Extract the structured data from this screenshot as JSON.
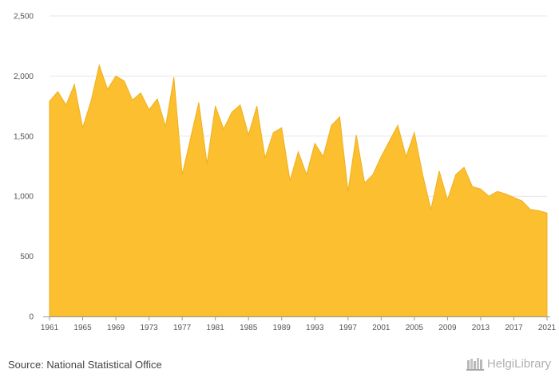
{
  "chart_data": {
    "type": "area",
    "title": "",
    "xlabel": "",
    "ylabel": "",
    "color": "#fbbf2f",
    "line_color": "#eeb11f",
    "grid": true,
    "ylim": [
      0,
      2500
    ],
    "xlim": [
      1961,
      2021
    ],
    "y_ticks": [
      "0",
      "500",
      "1,000",
      "1,500",
      "2,000",
      "2,500"
    ],
    "y_tick_values": [
      0,
      500,
      1000,
      1500,
      2000,
      2500
    ],
    "x_ticks": [
      "1961",
      "1965",
      "1969",
      "1973",
      "1977",
      "1981",
      "1985",
      "1989",
      "1993",
      "1997",
      "2001",
      "2005",
      "2009",
      "2013",
      "2017",
      "2021"
    ],
    "x": [
      1961,
      1962,
      1963,
      1964,
      1965,
      1966,
      1967,
      1968,
      1969,
      1970,
      1971,
      1972,
      1973,
      1974,
      1975,
      1976,
      1977,
      1978,
      1979,
      1980,
      1981,
      1982,
      1983,
      1984,
      1985,
      1986,
      1987,
      1988,
      1989,
      1990,
      1991,
      1992,
      1993,
      1994,
      1995,
      1996,
      1997,
      1998,
      1999,
      2000,
      2001,
      2002,
      2003,
      2004,
      2005,
      2006,
      2007,
      2008,
      2009,
      2010,
      2011,
      2012,
      2013,
      2014,
      2015,
      2016,
      2017,
      2018,
      2019,
      2020,
      2021
    ],
    "values": [
      1790,
      1870,
      1760,
      1930,
      1570,
      1790,
      2090,
      1890,
      2000,
      1960,
      1800,
      1860,
      1720,
      1810,
      1580,
      1990,
      1180,
      1480,
      1780,
      1270,
      1750,
      1560,
      1700,
      1760,
      1510,
      1750,
      1320,
      1530,
      1570,
      1130,
      1370,
      1180,
      1440,
      1330,
      1590,
      1660,
      1040,
      1510,
      1110,
      1180,
      1330,
      1460,
      1590,
      1330,
      1530,
      1180,
      890,
      1210,
      970,
      1180,
      1240,
      1080,
      1060,
      1000,
      1040,
      1020,
      990,
      960,
      890,
      880,
      860
    ]
  },
  "footer": {
    "source": "Source: National Statistical Office",
    "brand": "HelgiLibrary"
  }
}
